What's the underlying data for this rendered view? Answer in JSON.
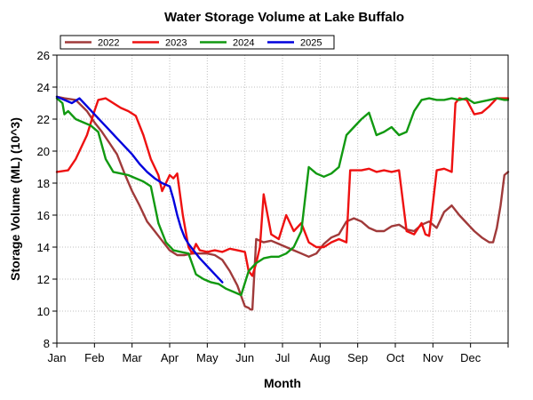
{
  "chart_data": {
    "type": "line",
    "title": "Water Storage Volume at Lake Buffalo",
    "xlabel": "Month",
    "ylabel": "Storage Volume (ML) (10^3)",
    "ylim": [
      8,
      26
    ],
    "yticks": [
      8,
      10,
      12,
      14,
      16,
      18,
      20,
      22,
      24,
      26
    ],
    "xlim": [
      0,
      12
    ],
    "xtick_labels": [
      "Jan",
      "Feb",
      "Mar",
      "Apr",
      "May",
      "Jun",
      "Jul",
      "Aug",
      "Sep",
      "Oct",
      "Nov",
      "Dec"
    ],
    "grid": true,
    "legend": "top-left",
    "series": [
      {
        "name": "2022",
        "color": "#a03a3a",
        "x": [
          0.0,
          0.2,
          0.5,
          0.8,
          1.0,
          1.2,
          1.4,
          1.6,
          1.8,
          2.0,
          2.2,
          2.4,
          2.6,
          2.8,
          3.0,
          3.2,
          3.4,
          3.6,
          3.8,
          4.0,
          4.2,
          4.4,
          4.6,
          4.8,
          5.0,
          5.1,
          5.15,
          5.2,
          5.3,
          5.5,
          5.7,
          5.9,
          6.1,
          6.3,
          6.5,
          6.7,
          6.9,
          7.1,
          7.3,
          7.5,
          7.7,
          7.9,
          8.1,
          8.3,
          8.5,
          8.7,
          8.9,
          9.1,
          9.3,
          9.5,
          9.7,
          9.9,
          10.1,
          10.3,
          10.5,
          10.7,
          10.9,
          11.1,
          11.3,
          11.5,
          11.6,
          11.7,
          11.8,
          11.9,
          12.0
        ],
        "y": [
          23.4,
          23.3,
          23.2,
          22.5,
          21.8,
          21.2,
          20.5,
          19.8,
          18.6,
          17.5,
          16.6,
          15.6,
          15.0,
          14.4,
          13.8,
          13.5,
          13.5,
          13.6,
          13.6,
          13.6,
          13.5,
          13.2,
          12.5,
          11.6,
          10.3,
          10.2,
          10.1,
          10.1,
          14.5,
          14.3,
          14.4,
          14.2,
          14.0,
          13.8,
          13.6,
          13.4,
          13.6,
          14.2,
          14.6,
          14.8,
          15.6,
          15.8,
          15.6,
          15.2,
          15.0,
          15.0,
          15.3,
          15.4,
          15.1,
          15.0,
          15.4,
          15.6,
          15.2,
          16.2,
          16.6,
          16.0,
          15.5,
          15.0,
          14.6,
          14.3,
          14.3,
          15.2,
          16.6,
          18.5,
          18.7
        ]
      },
      {
        "name": "2023",
        "color": "#ee1111",
        "x": [
          0.0,
          0.3,
          0.5,
          0.8,
          1.0,
          1.1,
          1.3,
          1.5,
          1.7,
          1.9,
          2.1,
          2.3,
          2.5,
          2.7,
          2.8,
          2.9,
          3.0,
          3.1,
          3.2,
          3.35,
          3.5,
          3.6,
          3.7,
          3.8,
          4.0,
          4.2,
          4.4,
          4.6,
          4.8,
          5.0,
          5.1,
          5.2,
          5.3,
          5.4,
          5.5,
          5.7,
          5.9,
          6.1,
          6.3,
          6.5,
          6.7,
          6.9,
          7.1,
          7.3,
          7.5,
          7.7,
          7.8,
          7.9,
          8.1,
          8.3,
          8.5,
          8.7,
          8.9,
          9.1,
          9.3,
          9.5,
          9.7,
          9.8,
          9.9,
          10.1,
          10.3,
          10.5,
          10.6,
          10.7,
          10.9,
          11.1,
          11.3,
          11.5,
          11.7,
          11.9,
          12.0
        ],
        "y": [
          18.7,
          18.8,
          19.5,
          21.0,
          22.5,
          23.2,
          23.3,
          23.0,
          22.7,
          22.5,
          22.2,
          21.0,
          19.5,
          18.5,
          17.5,
          18.0,
          18.5,
          18.3,
          18.6,
          16.0,
          14.0,
          13.6,
          14.2,
          13.8,
          13.7,
          13.8,
          13.7,
          13.9,
          13.8,
          13.7,
          12.5,
          12.2,
          13.0,
          14.0,
          17.3,
          14.8,
          14.5,
          16.0,
          15.0,
          15.5,
          14.3,
          14.0,
          14.0,
          14.3,
          14.5,
          14.3,
          18.8,
          18.8,
          18.8,
          18.9,
          18.7,
          18.8,
          18.7,
          18.8,
          15.0,
          14.8,
          15.5,
          14.8,
          14.7,
          18.8,
          18.9,
          18.7,
          23.0,
          23.3,
          23.2,
          22.3,
          22.4,
          22.8,
          23.3,
          23.3,
          23.3
        ]
      },
      {
        "name": "2024",
        "color": "#119911",
        "x": [
          0.0,
          0.15,
          0.2,
          0.3,
          0.5,
          0.7,
          0.9,
          1.1,
          1.3,
          1.5,
          1.7,
          1.9,
          2.1,
          2.3,
          2.5,
          2.7,
          2.9,
          3.1,
          3.3,
          3.5,
          3.7,
          3.9,
          4.1,
          4.3,
          4.5,
          4.7,
          4.9,
          5.1,
          5.3,
          5.5,
          5.7,
          5.9,
          6.1,
          6.3,
          6.5,
          6.7,
          6.9,
          7.1,
          7.3,
          7.5,
          7.7,
          7.9,
          8.1,
          8.3,
          8.5,
          8.7,
          8.9,
          9.1,
          9.3,
          9.5,
          9.7,
          9.9,
          10.1,
          10.3,
          10.5,
          10.7,
          10.9,
          11.1,
          11.3,
          11.5,
          11.7,
          11.9,
          12.0
        ],
        "y": [
          23.3,
          23.0,
          22.3,
          22.5,
          22.0,
          21.8,
          21.6,
          21.2,
          19.5,
          18.7,
          18.6,
          18.5,
          18.3,
          18.1,
          17.8,
          15.5,
          14.3,
          13.8,
          13.7,
          13.6,
          12.3,
          12.0,
          11.8,
          11.7,
          11.4,
          11.2,
          11.0,
          12.5,
          13.0,
          13.3,
          13.4,
          13.4,
          13.6,
          14.0,
          15.0,
          19.0,
          18.6,
          18.4,
          18.6,
          19.0,
          21.0,
          21.5,
          22.0,
          22.4,
          21.0,
          21.2,
          21.5,
          21.0,
          21.2,
          22.5,
          23.2,
          23.3,
          23.2,
          23.2,
          23.3,
          23.2,
          23.3,
          23.0,
          23.1,
          23.2,
          23.3,
          23.2,
          23.2
        ]
      },
      {
        "name": "2025",
        "color": "#0000dd",
        "x": [
          0.0,
          0.2,
          0.4,
          0.6,
          0.8,
          1.0,
          1.2,
          1.4,
          1.6,
          1.8,
          2.0,
          2.2,
          2.4,
          2.6,
          2.8,
          3.0,
          3.1,
          3.2,
          3.3,
          3.4,
          3.5,
          3.6,
          3.8,
          4.0,
          4.2,
          4.4
        ],
        "y": [
          23.4,
          23.2,
          23.0,
          23.3,
          22.8,
          22.3,
          21.8,
          21.3,
          20.8,
          20.3,
          19.8,
          19.2,
          18.7,
          18.3,
          18.0,
          17.8,
          17.0,
          16.0,
          15.2,
          14.6,
          14.2,
          13.9,
          13.3,
          12.8,
          12.3,
          11.8
        ]
      }
    ]
  }
}
